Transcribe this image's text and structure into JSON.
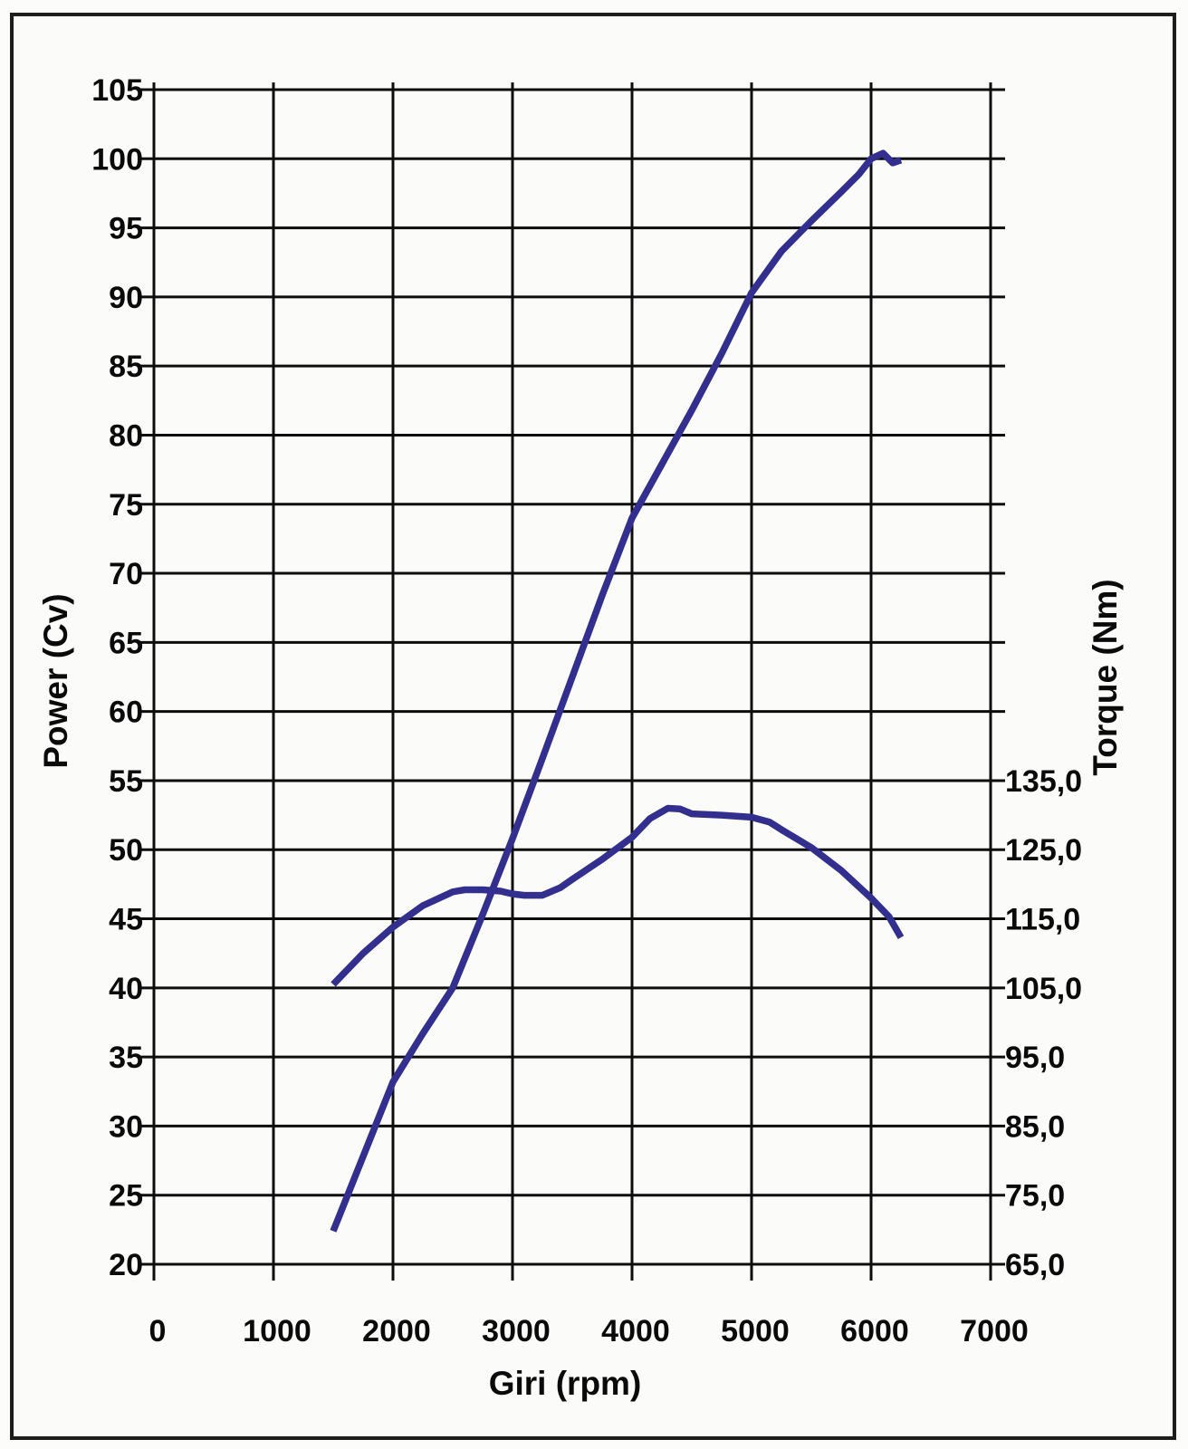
{
  "figure": {
    "background": "#fbfbfa",
    "border_color": "#1d1d1d",
    "grid_color": "#0d0d0d",
    "curve_color": "#322f8e"
  },
  "chart_data": {
    "type": "line",
    "title": "",
    "legend_position": "none",
    "grid": true,
    "x_axis": {
      "label": "Giri (rpm)",
      "min": 0,
      "max": 7000,
      "tick_step": 1000,
      "tick_values": [
        0,
        1000,
        2000,
        3000,
        4000,
        5000,
        6000,
        7000
      ],
      "tick_labels": [
        "0",
        "1000",
        "2000",
        "3000",
        "4000",
        "5000",
        "6000",
        "7000"
      ]
    },
    "y_left_axis": {
      "label": "Power (Cv)",
      "min": 20,
      "max": 105,
      "tick_step": 5,
      "tick_values": [
        105,
        100,
        95,
        90,
        85,
        80,
        75,
        70,
        65,
        60,
        55,
        50,
        45,
        40,
        35,
        30,
        25,
        20
      ],
      "tick_labels": [
        "105",
        "100",
        "95",
        "90",
        "85",
        "80",
        "75",
        "70",
        "65",
        "60",
        "55",
        "50",
        "45",
        "40",
        "35",
        "30",
        "25",
        "20"
      ]
    },
    "y_right_axis": {
      "label": "Torque (Nm)",
      "min": 65,
      "max": 135,
      "tick_step": 10,
      "nm_per_cv_gridline": 10,
      "tick_labels": [
        "135,0",
        "125,0",
        "115,0",
        "105,0",
        "95,0",
        "85,0",
        "75,0",
        "65,0"
      ],
      "anchor_power_values": [
        55,
        50,
        45,
        40,
        35,
        30,
        25,
        20
      ]
    },
    "series": [
      {
        "name": "power",
        "axis": "left",
        "unit": "Cv",
        "points": [
          [
            1500,
            22.4
          ],
          [
            1750,
            27.8
          ],
          [
            2000,
            33.2
          ],
          [
            2250,
            36.7
          ],
          [
            2500,
            40.0
          ],
          [
            2750,
            45.3
          ],
          [
            3000,
            50.8
          ],
          [
            3250,
            56.6
          ],
          [
            3500,
            62.5
          ],
          [
            3750,
            68.4
          ],
          [
            4000,
            74.0
          ],
          [
            4250,
            77.9
          ],
          [
            4500,
            81.8
          ],
          [
            4750,
            85.9
          ],
          [
            5000,
            90.3
          ],
          [
            5250,
            93.3
          ],
          [
            5500,
            95.5
          ],
          [
            5750,
            97.6
          ],
          [
            5900,
            98.9
          ],
          [
            6000,
            100.0
          ],
          [
            6100,
            100.4
          ],
          [
            6180,
            99.7
          ],
          [
            6250,
            99.9
          ]
        ]
      },
      {
        "name": "torque",
        "axis": "right",
        "unit": "Nm",
        "points": [
          [
            1500,
            105.5
          ],
          [
            1750,
            110.0
          ],
          [
            2000,
            113.8
          ],
          [
            2250,
            116.9
          ],
          [
            2500,
            118.9
          ],
          [
            2600,
            119.2
          ],
          [
            2750,
            119.2
          ],
          [
            2900,
            119.0
          ],
          [
            3000,
            118.6
          ],
          [
            3100,
            118.4
          ],
          [
            3250,
            118.4
          ],
          [
            3400,
            119.5
          ],
          [
            3500,
            120.7
          ],
          [
            3750,
            123.6
          ],
          [
            4000,
            126.8
          ],
          [
            4150,
            129.5
          ],
          [
            4300,
            131.0
          ],
          [
            4400,
            130.9
          ],
          [
            4500,
            130.2
          ],
          [
            4750,
            130.0
          ],
          [
            5000,
            129.7
          ],
          [
            5150,
            129.0
          ],
          [
            5250,
            127.9
          ],
          [
            5500,
            125.3
          ],
          [
            5750,
            122.0
          ],
          [
            6000,
            118.0
          ],
          [
            6150,
            115.3
          ],
          [
            6250,
            112.3
          ]
        ]
      }
    ]
  }
}
